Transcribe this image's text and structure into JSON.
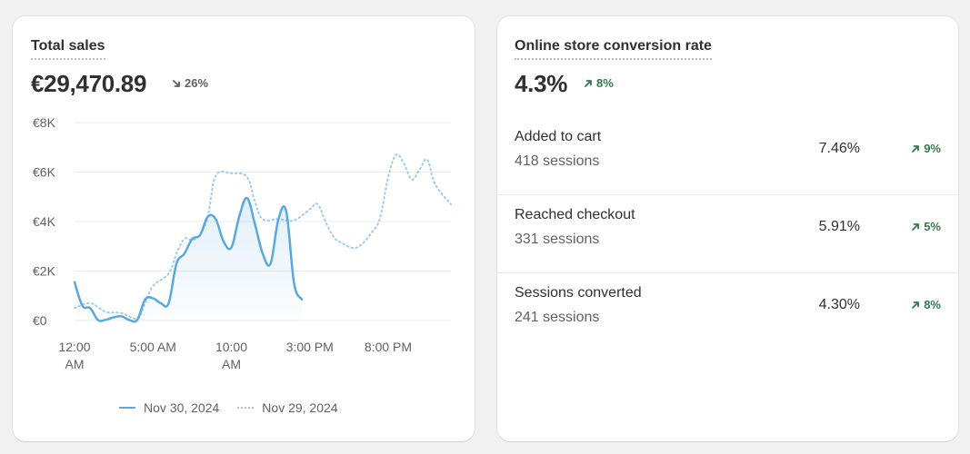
{
  "colors": {
    "current_series": "#5aa8de",
    "previous_series": "#9dcbee",
    "positive": "#2e7d46",
    "negative": "#616161"
  },
  "sales_card": {
    "title": "Total sales",
    "value": "€29,470.89",
    "change": "26%",
    "change_direction": "down",
    "legend": [
      {
        "label": "Nov 30, 2024",
        "style": "solid"
      },
      {
        "label": "Nov 29, 2024",
        "style": "dotted"
      }
    ]
  },
  "conversion_card": {
    "title": "Online store conversion rate",
    "value": "4.3%",
    "change": "8%",
    "change_direction": "up",
    "rows": [
      {
        "label": "Added to cart",
        "sessions": "418 sessions",
        "value": "7.46%",
        "change": "9%",
        "change_direction": "up"
      },
      {
        "label": "Reached checkout",
        "sessions": "331 sessions",
        "value": "5.91%",
        "change": "5%",
        "change_direction": "up"
      },
      {
        "label": "Sessions converted",
        "sessions": "241 sessions",
        "value": "4.30%",
        "change": "8%",
        "change_direction": "up"
      }
    ]
  },
  "chart_data": {
    "type": "line",
    "title": "",
    "xlabel": "",
    "ylabel": "",
    "ylim": [
      0,
      8000
    ],
    "yticks": [
      {
        "value": 0,
        "label": "€0"
      },
      {
        "value": 2000,
        "label": "€2K"
      },
      {
        "value": 4000,
        "label": "€4K"
      },
      {
        "value": 6000,
        "label": "€6K"
      },
      {
        "value": 8000,
        "label": "€8K"
      }
    ],
    "xlim": [
      0,
      24
    ],
    "xticks": [
      {
        "value": 0,
        "lines": [
          "12:00",
          "AM"
        ]
      },
      {
        "value": 5,
        "lines": [
          "5:00 AM"
        ]
      },
      {
        "value": 10,
        "lines": [
          "10:00",
          "AM"
        ]
      },
      {
        "value": 15,
        "lines": [
          "3:00 PM"
        ]
      },
      {
        "value": 20,
        "lines": [
          "8:00 PM"
        ]
      }
    ],
    "grid": true,
    "legend_position": "bottom",
    "series": [
      {
        "name": "Nov 30, 2024",
        "style": "solid",
        "area": true,
        "points": [
          [
            0,
            1550
          ],
          [
            0.5,
            600
          ],
          [
            1,
            500
          ],
          [
            1.5,
            20
          ],
          [
            2,
            30
          ],
          [
            2.5,
            130
          ],
          [
            3,
            170
          ],
          [
            3.5,
            20
          ],
          [
            4,
            30
          ],
          [
            4.5,
            850
          ],
          [
            5,
            900
          ],
          [
            5.5,
            700
          ],
          [
            6,
            700
          ],
          [
            6.5,
            2300
          ],
          [
            7,
            2700
          ],
          [
            7.5,
            3300
          ],
          [
            8,
            3450
          ],
          [
            8.5,
            4200
          ],
          [
            9,
            4100
          ],
          [
            9.5,
            3200
          ],
          [
            10,
            2950
          ],
          [
            10.5,
            4200
          ],
          [
            11,
            4950
          ],
          [
            11.5,
            3900
          ],
          [
            12,
            2700
          ],
          [
            12.5,
            2300
          ],
          [
            13,
            4100
          ],
          [
            13.5,
            4400
          ],
          [
            14,
            1500
          ],
          [
            14.5,
            850
          ]
        ]
      },
      {
        "name": "Nov 29, 2024",
        "style": "dotted",
        "area": false,
        "points": [
          [
            0,
            500
          ],
          [
            1,
            700
          ],
          [
            2,
            350
          ],
          [
            3,
            300
          ],
          [
            4,
            80
          ],
          [
            4.5,
            700
          ],
          [
            5,
            1400
          ],
          [
            6,
            1900
          ],
          [
            6.5,
            2700
          ],
          [
            7,
            3300
          ],
          [
            7.5,
            3250
          ],
          [
            8,
            3500
          ],
          [
            8.5,
            4200
          ],
          [
            9,
            5850
          ],
          [
            10,
            5950
          ],
          [
            11,
            5800
          ],
          [
            11.5,
            4800
          ],
          [
            12,
            4100
          ],
          [
            13,
            4100
          ],
          [
            14,
            4050
          ],
          [
            15,
            4500
          ],
          [
            15.5,
            4700
          ],
          [
            16,
            4000
          ],
          [
            16.5,
            3400
          ],
          [
            17,
            3150
          ],
          [
            18,
            2950
          ],
          [
            19,
            3600
          ],
          [
            19.5,
            4200
          ],
          [
            20,
            5800
          ],
          [
            20.5,
            6700
          ],
          [
            21,
            6350
          ],
          [
            21.5,
            5700
          ],
          [
            22,
            6100
          ],
          [
            22.5,
            6500
          ],
          [
            23,
            5500
          ],
          [
            24,
            4700
          ]
        ]
      }
    ]
  }
}
